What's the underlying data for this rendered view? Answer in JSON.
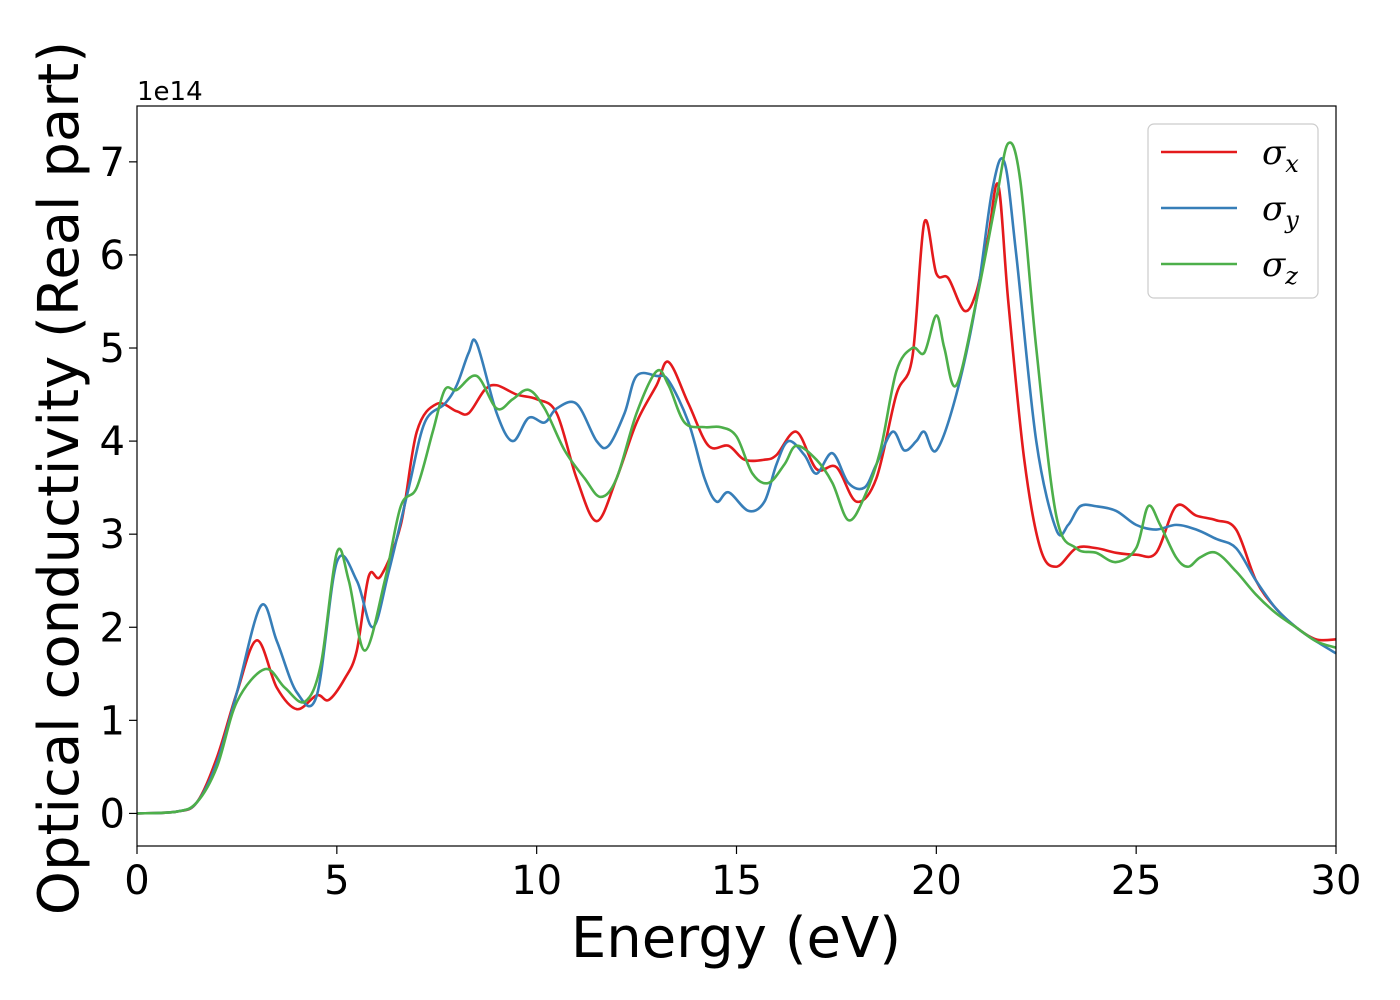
{
  "chart_data": {
    "type": "line",
    "xlabel": "Energy (eV)",
    "ylabel": "Optical conductivity (Real part)",
    "y_offset_label": "1e14",
    "y_multiplier": 100000000000000.0,
    "xlim": [
      0,
      30
    ],
    "ylim": [
      -0.35,
      7.6
    ],
    "x_ticks": [
      0,
      5,
      10,
      15,
      20,
      25,
      30
    ],
    "y_ticks": [
      0,
      1,
      2,
      3,
      4,
      5,
      6,
      7
    ],
    "grid": false,
    "legend_position": "top-right",
    "series": [
      {
        "name": "σ",
        "subscript": "x",
        "color": "#e41a1c",
        "points": [
          [
            0,
            0
          ],
          [
            1,
            0.02
          ],
          [
            1.5,
            0.12
          ],
          [
            2,
            0.6
          ],
          [
            2.5,
            1.3
          ],
          [
            3,
            1.86
          ],
          [
            3.5,
            1.35
          ],
          [
            4,
            1.12
          ],
          [
            4.5,
            1.27
          ],
          [
            4.8,
            1.22
          ],
          [
            5.2,
            1.45
          ],
          [
            5.5,
            1.75
          ],
          [
            5.8,
            2.55
          ],
          [
            6.1,
            2.55
          ],
          [
            6.6,
            3.1
          ],
          [
            7.0,
            4.1
          ],
          [
            7.5,
            4.4
          ],
          [
            8.0,
            4.32
          ],
          [
            8.3,
            4.3
          ],
          [
            8.7,
            4.55
          ],
          [
            9.0,
            4.6
          ],
          [
            9.5,
            4.5
          ],
          [
            10.0,
            4.45
          ],
          [
            10.5,
            4.3
          ],
          [
            11.0,
            3.6
          ],
          [
            11.5,
            3.14
          ],
          [
            12.0,
            3.6
          ],
          [
            12.5,
            4.2
          ],
          [
            13.0,
            4.6
          ],
          [
            13.3,
            4.85
          ],
          [
            13.8,
            4.4
          ],
          [
            14.3,
            3.95
          ],
          [
            14.8,
            3.95
          ],
          [
            15.2,
            3.8
          ],
          [
            15.7,
            3.8
          ],
          [
            16.0,
            3.85
          ],
          [
            16.5,
            4.1
          ],
          [
            17.0,
            3.7
          ],
          [
            17.5,
            3.72
          ],
          [
            18.0,
            3.35
          ],
          [
            18.5,
            3.6
          ],
          [
            19.0,
            4.5
          ],
          [
            19.4,
            4.9
          ],
          [
            19.7,
            6.35
          ],
          [
            20.0,
            5.8
          ],
          [
            20.3,
            5.75
          ],
          [
            20.7,
            5.4
          ],
          [
            21.0,
            5.6
          ],
          [
            21.3,
            6.2
          ],
          [
            21.55,
            6.75
          ],
          [
            21.8,
            5.5
          ],
          [
            22.2,
            3.8
          ],
          [
            22.6,
            2.85
          ],
          [
            23.0,
            2.65
          ],
          [
            23.5,
            2.85
          ],
          [
            24.0,
            2.85
          ],
          [
            24.5,
            2.8
          ],
          [
            25.0,
            2.78
          ],
          [
            25.5,
            2.8
          ],
          [
            26.0,
            3.3
          ],
          [
            26.5,
            3.2
          ],
          [
            27.0,
            3.15
          ],
          [
            27.5,
            3.05
          ],
          [
            28.0,
            2.5
          ],
          [
            28.5,
            2.2
          ],
          [
            29.0,
            2.0
          ],
          [
            29.5,
            1.87
          ],
          [
            30.0,
            1.87
          ]
        ]
      },
      {
        "name": "σ",
        "subscript": "y",
        "color": "#377eb8",
        "points": [
          [
            0,
            0
          ],
          [
            1,
            0.02
          ],
          [
            1.5,
            0.12
          ],
          [
            2,
            0.55
          ],
          [
            2.5,
            1.3
          ],
          [
            3.1,
            2.23
          ],
          [
            3.5,
            1.85
          ],
          [
            4,
            1.3
          ],
          [
            4.5,
            1.27
          ],
          [
            5.0,
            2.7
          ],
          [
            5.5,
            2.5
          ],
          [
            5.9,
            2.0
          ],
          [
            6.3,
            2.6
          ],
          [
            6.8,
            3.5
          ],
          [
            7.2,
            4.2
          ],
          [
            7.7,
            4.4
          ],
          [
            8.0,
            4.6
          ],
          [
            8.3,
            4.95
          ],
          [
            8.5,
            5.05
          ],
          [
            9.0,
            4.3
          ],
          [
            9.4,
            4.0
          ],
          [
            9.8,
            4.25
          ],
          [
            10.2,
            4.2
          ],
          [
            10.5,
            4.35
          ],
          [
            11.0,
            4.4
          ],
          [
            11.5,
            4.0
          ],
          [
            11.8,
            3.95
          ],
          [
            12.2,
            4.3
          ],
          [
            12.5,
            4.7
          ],
          [
            13.0,
            4.7
          ],
          [
            13.3,
            4.65
          ],
          [
            13.8,
            4.2
          ],
          [
            14.2,
            3.6
          ],
          [
            14.5,
            3.35
          ],
          [
            14.8,
            3.45
          ],
          [
            15.3,
            3.25
          ],
          [
            15.7,
            3.35
          ],
          [
            16.0,
            3.75
          ],
          [
            16.3,
            4.0
          ],
          [
            16.7,
            3.85
          ],
          [
            17.0,
            3.65
          ],
          [
            17.4,
            3.87
          ],
          [
            17.8,
            3.55
          ],
          [
            18.2,
            3.5
          ],
          [
            18.5,
            3.75
          ],
          [
            18.9,
            4.1
          ],
          [
            19.2,
            3.9
          ],
          [
            19.5,
            4.0
          ],
          [
            19.7,
            4.1
          ],
          [
            20.0,
            3.9
          ],
          [
            20.5,
            4.5
          ],
          [
            21.0,
            5.5
          ],
          [
            21.4,
            6.7
          ],
          [
            21.7,
            7.0
          ],
          [
            22.0,
            6.0
          ],
          [
            22.5,
            4.0
          ],
          [
            23.0,
            3.05
          ],
          [
            23.3,
            3.1
          ],
          [
            23.6,
            3.3
          ],
          [
            24.0,
            3.3
          ],
          [
            24.5,
            3.25
          ],
          [
            25.0,
            3.1
          ],
          [
            25.5,
            3.05
          ],
          [
            26.0,
            3.1
          ],
          [
            26.5,
            3.05
          ],
          [
            27.0,
            2.95
          ],
          [
            27.5,
            2.85
          ],
          [
            28.0,
            2.5
          ],
          [
            28.5,
            2.2
          ],
          [
            29.0,
            2.0
          ],
          [
            29.5,
            1.85
          ],
          [
            30.0,
            1.72
          ]
        ]
      },
      {
        "name": "σ",
        "subscript": "z",
        "color": "#4daf4a",
        "points": [
          [
            0,
            0
          ],
          [
            1,
            0.02
          ],
          [
            1.5,
            0.12
          ],
          [
            2,
            0.5
          ],
          [
            2.5,
            1.2
          ],
          [
            3.2,
            1.55
          ],
          [
            3.7,
            1.35
          ],
          [
            4.2,
            1.2
          ],
          [
            4.6,
            1.6
          ],
          [
            5.0,
            2.8
          ],
          [
            5.3,
            2.5
          ],
          [
            5.7,
            1.75
          ],
          [
            6.2,
            2.5
          ],
          [
            6.6,
            3.3
          ],
          [
            7.0,
            3.5
          ],
          [
            7.4,
            4.1
          ],
          [
            7.7,
            4.55
          ],
          [
            8.0,
            4.55
          ],
          [
            8.5,
            4.7
          ],
          [
            9.0,
            4.35
          ],
          [
            9.4,
            4.45
          ],
          [
            9.8,
            4.55
          ],
          [
            10.2,
            4.35
          ],
          [
            10.7,
            3.9
          ],
          [
            11.2,
            3.6
          ],
          [
            11.6,
            3.4
          ],
          [
            12.0,
            3.6
          ],
          [
            12.5,
            4.3
          ],
          [
            13.0,
            4.75
          ],
          [
            13.3,
            4.6
          ],
          [
            13.7,
            4.2
          ],
          [
            14.2,
            4.15
          ],
          [
            14.6,
            4.15
          ],
          [
            15.0,
            4.05
          ],
          [
            15.4,
            3.65
          ],
          [
            15.8,
            3.55
          ],
          [
            16.2,
            3.75
          ],
          [
            16.5,
            3.95
          ],
          [
            17.0,
            3.8
          ],
          [
            17.4,
            3.55
          ],
          [
            17.8,
            3.15
          ],
          [
            18.2,
            3.4
          ],
          [
            18.6,
            3.9
          ],
          [
            19.0,
            4.75
          ],
          [
            19.4,
            5.0
          ],
          [
            19.7,
            4.95
          ],
          [
            20.0,
            5.35
          ],
          [
            20.2,
            5.0
          ],
          [
            20.5,
            4.6
          ],
          [
            21.0,
            5.5
          ],
          [
            21.5,
            6.6
          ],
          [
            21.8,
            7.2
          ],
          [
            22.1,
            6.8
          ],
          [
            22.5,
            5.0
          ],
          [
            23.0,
            3.2
          ],
          [
            23.5,
            2.85
          ],
          [
            24.0,
            2.8
          ],
          [
            24.5,
            2.7
          ],
          [
            25.0,
            2.85
          ],
          [
            25.3,
            3.3
          ],
          [
            25.6,
            3.1
          ],
          [
            26.0,
            2.75
          ],
          [
            26.3,
            2.65
          ],
          [
            26.6,
            2.75
          ],
          [
            27.0,
            2.8
          ],
          [
            27.5,
            2.6
          ],
          [
            28.0,
            2.35
          ],
          [
            28.5,
            2.15
          ],
          [
            29.0,
            2.0
          ],
          [
            29.5,
            1.85
          ],
          [
            30.0,
            1.78
          ]
        ]
      }
    ]
  }
}
